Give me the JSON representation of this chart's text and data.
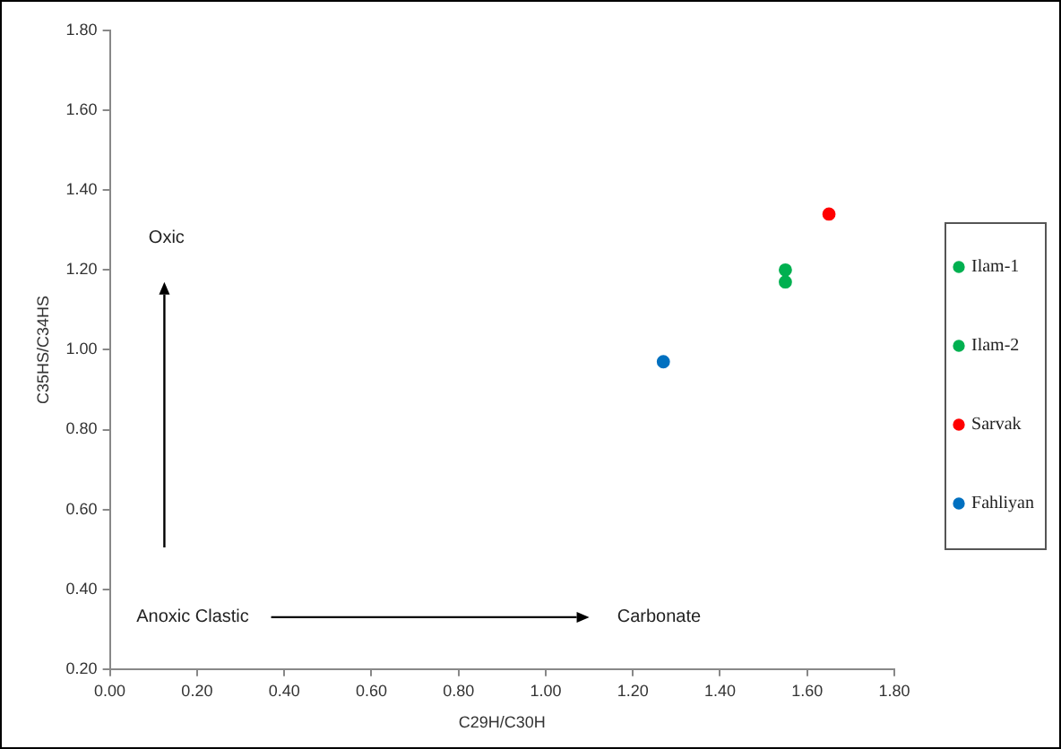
{
  "chart_data": {
    "type": "scatter",
    "xlabel": "C29H/C30H",
    "ylabel": "C35HS/C34HS",
    "series": [
      {
        "name": "Ilam-1",
        "color": "#00b050",
        "x": [
          1.55
        ],
        "values": [
          1.2
        ]
      },
      {
        "name": "Ilam-2",
        "color": "#00b050",
        "x": [
          1.55
        ],
        "values": [
          1.17
        ]
      },
      {
        "name": "Sarvak",
        "color": "#ff0000",
        "x": [
          1.65
        ],
        "values": [
          1.34
        ]
      },
      {
        "name": "Fahliyan",
        "color": "#0070c0",
        "x": [
          1.27
        ],
        "values": [
          0.97
        ]
      }
    ],
    "xlim": [
      0,
      1.8
    ],
    "xticks": [
      {
        "value": 0,
        "label": "0.00"
      },
      {
        "value": 0.2,
        "label": "0.20"
      },
      {
        "value": 0.4,
        "label": "0.40"
      },
      {
        "value": 0.6,
        "label": "0.60"
      },
      {
        "value": 0.8,
        "label": "0.80"
      },
      {
        "value": 1,
        "label": "1.00"
      },
      {
        "value": 1.2,
        "label": "1.20"
      },
      {
        "value": 1.4,
        "label": "1.40"
      },
      {
        "value": 1.6,
        "label": "1.60"
      },
      {
        "value": 1.8,
        "label": "1.80"
      }
    ],
    "ylim": [
      0.2,
      1.8
    ],
    "yticks": [
      {
        "value": 0.2,
        "label": "0.20"
      },
      {
        "value": 0.4,
        "label": "0.40"
      },
      {
        "value": 0.6,
        "label": "0.60"
      },
      {
        "value": 0.8,
        "label": "0.80"
      },
      {
        "value": 1,
        "label": "1.00"
      },
      {
        "value": 1.2,
        "label": "1.20"
      },
      {
        "value": 1.4,
        "label": "1.40"
      },
      {
        "value": 1.6,
        "label": "1.60"
      },
      {
        "value": 1.8,
        "label": "1.80"
      }
    ],
    "annotations": [
      "Oxic",
      "Anoxic Clastic",
      "Carbonate"
    ],
    "grid": false,
    "legend": "right",
    "marker": "circle"
  }
}
